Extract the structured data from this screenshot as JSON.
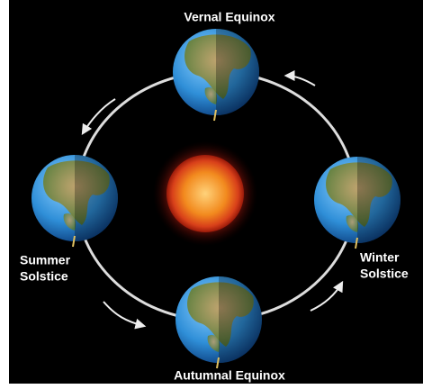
{
  "nodes": [
    {
      "label": [
        "Vernal Equinox"
      ]
    },
    {
      "label": [
        "Summer",
        "Solstice"
      ]
    },
    {
      "label": [
        "Winter",
        "Solstice"
      ]
    },
    {
      "label": [
        "Autumnal Equinox"
      ]
    }
  ]
}
